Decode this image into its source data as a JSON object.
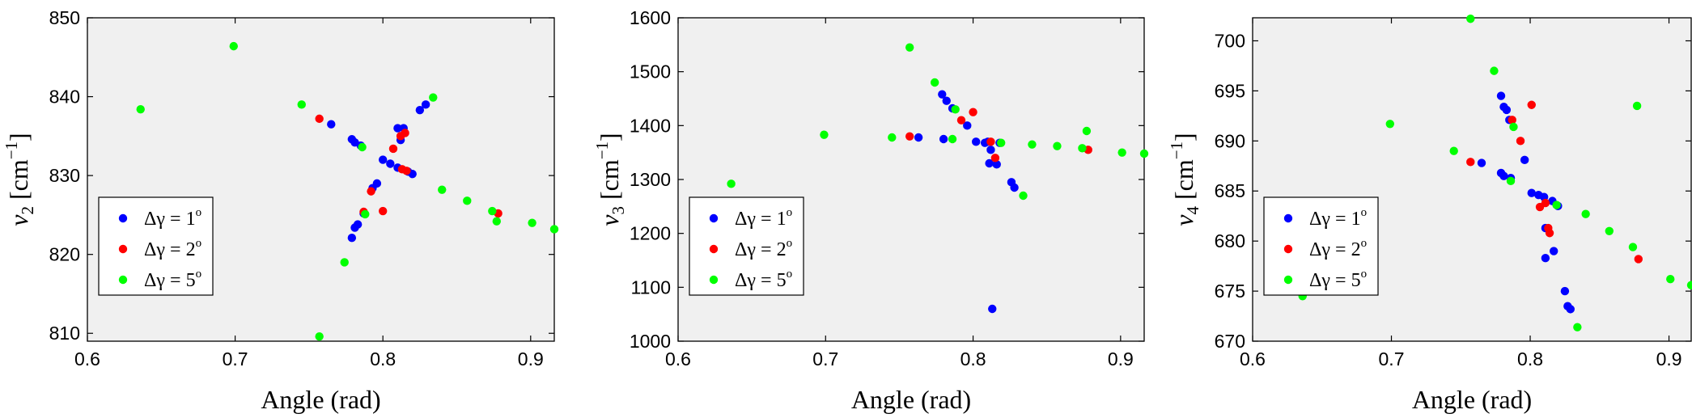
{
  "chart_data": [
    {
      "type": "scatter",
      "xlabel": "Angle (rad)",
      "ylabel_symbol": "ν",
      "ylabel_sub": "2",
      "ylabel_unit": " [cm",
      "ylabel_exp": "−1",
      "ylabel_close": "]",
      "xlim": [
        0.6,
        0.916
      ],
      "ylim": [
        809,
        850
      ],
      "xticks": [
        0.6,
        0.7,
        0.8,
        0.9
      ],
      "xtick_labels": [
        "0.6",
        "0.7",
        "0.8",
        "0.9"
      ],
      "yticks": [
        810,
        820,
        830,
        840,
        850
      ],
      "ytick_labels": [
        "810",
        "820",
        "830",
        "840",
        "850"
      ],
      "legend_placement": "lower-left",
      "series": [
        {
          "name": "Δγ = 1",
          "name_sup": "o",
          "color": "#0000ff",
          "points": [
            [
              0.765,
              836.5
            ],
            [
              0.779,
              834.6
            ],
            [
              0.781,
              834.2
            ],
            [
              0.785,
              833.8
            ],
            [
              0.81,
              836.0
            ],
            [
              0.814,
              836.0
            ],
            [
              0.812,
              834.5
            ],
            [
              0.825,
              838.3
            ],
            [
              0.829,
              839.0
            ],
            [
              0.8,
              832.0
            ],
            [
              0.805,
              831.5
            ],
            [
              0.81,
              831.0
            ],
            [
              0.817,
              830.5
            ],
            [
              0.82,
              830.2
            ],
            [
              0.796,
              829.0
            ],
            [
              0.793,
              828.4
            ],
            [
              0.787,
              825.2
            ],
            [
              0.783,
              823.8
            ],
            [
              0.781,
              823.4
            ],
            [
              0.779,
              822.1
            ]
          ]
        },
        {
          "name": "Δγ = 2",
          "name_sup": "o",
          "color": "#ff0000",
          "points": [
            [
              0.757,
              837.2
            ],
            [
              0.812,
              835.0
            ],
            [
              0.815,
              835.4
            ],
            [
              0.807,
              833.4
            ],
            [
              0.813,
              830.8
            ],
            [
              0.816,
              830.6
            ],
            [
              0.792,
              828.0
            ],
            [
              0.787,
              825.4
            ],
            [
              0.8,
              825.5
            ],
            [
              0.878,
              825.2
            ]
          ]
        },
        {
          "name": "Δγ = 5",
          "name_sup": "o",
          "color": "#00ff00",
          "points": [
            [
              0.636,
              838.4
            ],
            [
              0.699,
              846.4
            ],
            [
              0.745,
              839.0
            ],
            [
              0.786,
              833.6
            ],
            [
              0.834,
              839.9
            ],
            [
              0.84,
              828.2
            ],
            [
              0.857,
              826.8
            ],
            [
              0.874,
              825.5
            ],
            [
              0.877,
              824.2
            ],
            [
              0.901,
              824.0
            ],
            [
              0.916,
              823.2
            ],
            [
              0.788,
              825.1
            ],
            [
              0.774,
              819.0
            ],
            [
              0.757,
              809.6
            ]
          ]
        }
      ]
    },
    {
      "type": "scatter",
      "xlabel": "Angle (rad)",
      "ylabel_symbol": "ν",
      "ylabel_sub": "3",
      "ylabel_unit": " [cm",
      "ylabel_exp": "−1",
      "ylabel_close": "]",
      "xlim": [
        0.6,
        0.916
      ],
      "ylim": [
        1000,
        1600
      ],
      "xticks": [
        0.6,
        0.7,
        0.8,
        0.9
      ],
      "xtick_labels": [
        "0.6",
        "0.7",
        "0.8",
        "0.9"
      ],
      "yticks": [
        1000,
        1100,
        1200,
        1300,
        1400,
        1500,
        1600
      ],
      "ytick_labels": [
        "1000",
        "1100",
        "1200",
        "1300",
        "1400",
        "1500",
        "1600"
      ],
      "legend_placement": "lower-left",
      "series": [
        {
          "name": "Δγ = 1",
          "name_sup": "o",
          "color": "#0000ff",
          "points": [
            [
              0.763,
              1378
            ],
            [
              0.779,
              1458
            ],
            [
              0.782,
              1446
            ],
            [
              0.786,
              1432
            ],
            [
              0.78,
              1375
            ],
            [
              0.796,
              1400
            ],
            [
              0.802,
              1370
            ],
            [
              0.808,
              1368
            ],
            [
              0.81,
              1370
            ],
            [
              0.812,
              1355
            ],
            [
              0.811,
              1330
            ],
            [
              0.816,
              1328
            ],
            [
              0.818,
              1368
            ],
            [
              0.826,
              1295
            ],
            [
              0.828,
              1285
            ],
            [
              0.813,
              1060
            ]
          ]
        },
        {
          "name": "Δγ = 2",
          "name_sup": "o",
          "color": "#ff0000",
          "points": [
            [
              0.757,
              1380
            ],
            [
              0.8,
              1425
            ],
            [
              0.792,
              1410
            ],
            [
              0.812,
              1370
            ],
            [
              0.815,
              1340
            ],
            [
              0.878,
              1355
            ]
          ]
        },
        {
          "name": "Δγ = 5",
          "name_sup": "o",
          "color": "#00ff00",
          "points": [
            [
              0.636,
              1292
            ],
            [
              0.699,
              1383
            ],
            [
              0.745,
              1378
            ],
            [
              0.757,
              1545
            ],
            [
              0.774,
              1480
            ],
            [
              0.788,
              1430
            ],
            [
              0.786,
              1375
            ],
            [
              0.819,
              1368
            ],
            [
              0.834,
              1270
            ],
            [
              0.84,
              1365
            ],
            [
              0.857,
              1362
            ],
            [
              0.874,
              1358
            ],
            [
              0.877,
              1390
            ],
            [
              0.901,
              1350
            ],
            [
              0.916,
              1348
            ]
          ]
        }
      ]
    },
    {
      "type": "scatter",
      "xlabel": "Angle (rad)",
      "ylabel_symbol": "ν",
      "ylabel_sub": "4",
      "ylabel_unit": " [cm",
      "ylabel_exp": "−1",
      "ylabel_close": "]",
      "xlim": [
        0.6,
        0.916
      ],
      "ylim": [
        670,
        702.3
      ],
      "xticks": [
        0.6,
        0.7,
        0.8,
        0.9
      ],
      "xtick_labels": [
        "0.6",
        "0.7",
        "0.8",
        "0.9"
      ],
      "yticks": [
        670,
        675,
        680,
        685,
        690,
        695,
        700
      ],
      "ytick_labels": [
        "670",
        "675",
        "680",
        "685",
        "690",
        "695",
        "700"
      ],
      "legend_placement": "lower-left",
      "series": [
        {
          "name": "Δγ = 1",
          "name_sup": "o",
          "color": "#0000ff",
          "points": [
            [
              0.779,
              694.5
            ],
            [
              0.781,
              693.4
            ],
            [
              0.783,
              693.1
            ],
            [
              0.785,
              692.1
            ],
            [
              0.796,
              688.1
            ],
            [
              0.765,
              687.8
            ],
            [
              0.779,
              686.8
            ],
            [
              0.781,
              686.5
            ],
            [
              0.786,
              686.3
            ],
            [
              0.801,
              684.8
            ],
            [
              0.806,
              684.6
            ],
            [
              0.81,
              684.4
            ],
            [
              0.816,
              684.0
            ],
            [
              0.82,
              683.5
            ],
            [
              0.811,
              681.3
            ],
            [
              0.817,
              679.0
            ],
            [
              0.811,
              678.3
            ],
            [
              0.825,
              675.0
            ],
            [
              0.827,
              673.5
            ],
            [
              0.829,
              673.2
            ]
          ]
        },
        {
          "name": "Δγ = 2",
          "name_sup": "o",
          "color": "#ff0000",
          "points": [
            [
              0.757,
              687.9
            ],
            [
              0.801,
              693.6
            ],
            [
              0.787,
              692.1
            ],
            [
              0.793,
              690.0
            ],
            [
              0.807,
              683.4
            ],
            [
              0.811,
              683.8
            ],
            [
              0.813,
              681.3
            ],
            [
              0.814,
              680.8
            ],
            [
              0.878,
              678.2
            ]
          ]
        },
        {
          "name": "Δγ = 5",
          "name_sup": "o",
          "color": "#00ff00",
          "points": [
            [
              0.636,
              674.5
            ],
            [
              0.699,
              691.7
            ],
            [
              0.745,
              689.0
            ],
            [
              0.757,
              702.2
            ],
            [
              0.774,
              697.0
            ],
            [
              0.788,
              691.4
            ],
            [
              0.786,
              686.0
            ],
            [
              0.819,
              683.6
            ],
            [
              0.84,
              682.7
            ],
            [
              0.857,
              681.0
            ],
            [
              0.874,
              679.4
            ],
            [
              0.877,
              693.5
            ],
            [
              0.901,
              676.2
            ],
            [
              0.916,
              675.6
            ],
            [
              0.834,
              671.4
            ]
          ]
        }
      ]
    }
  ]
}
